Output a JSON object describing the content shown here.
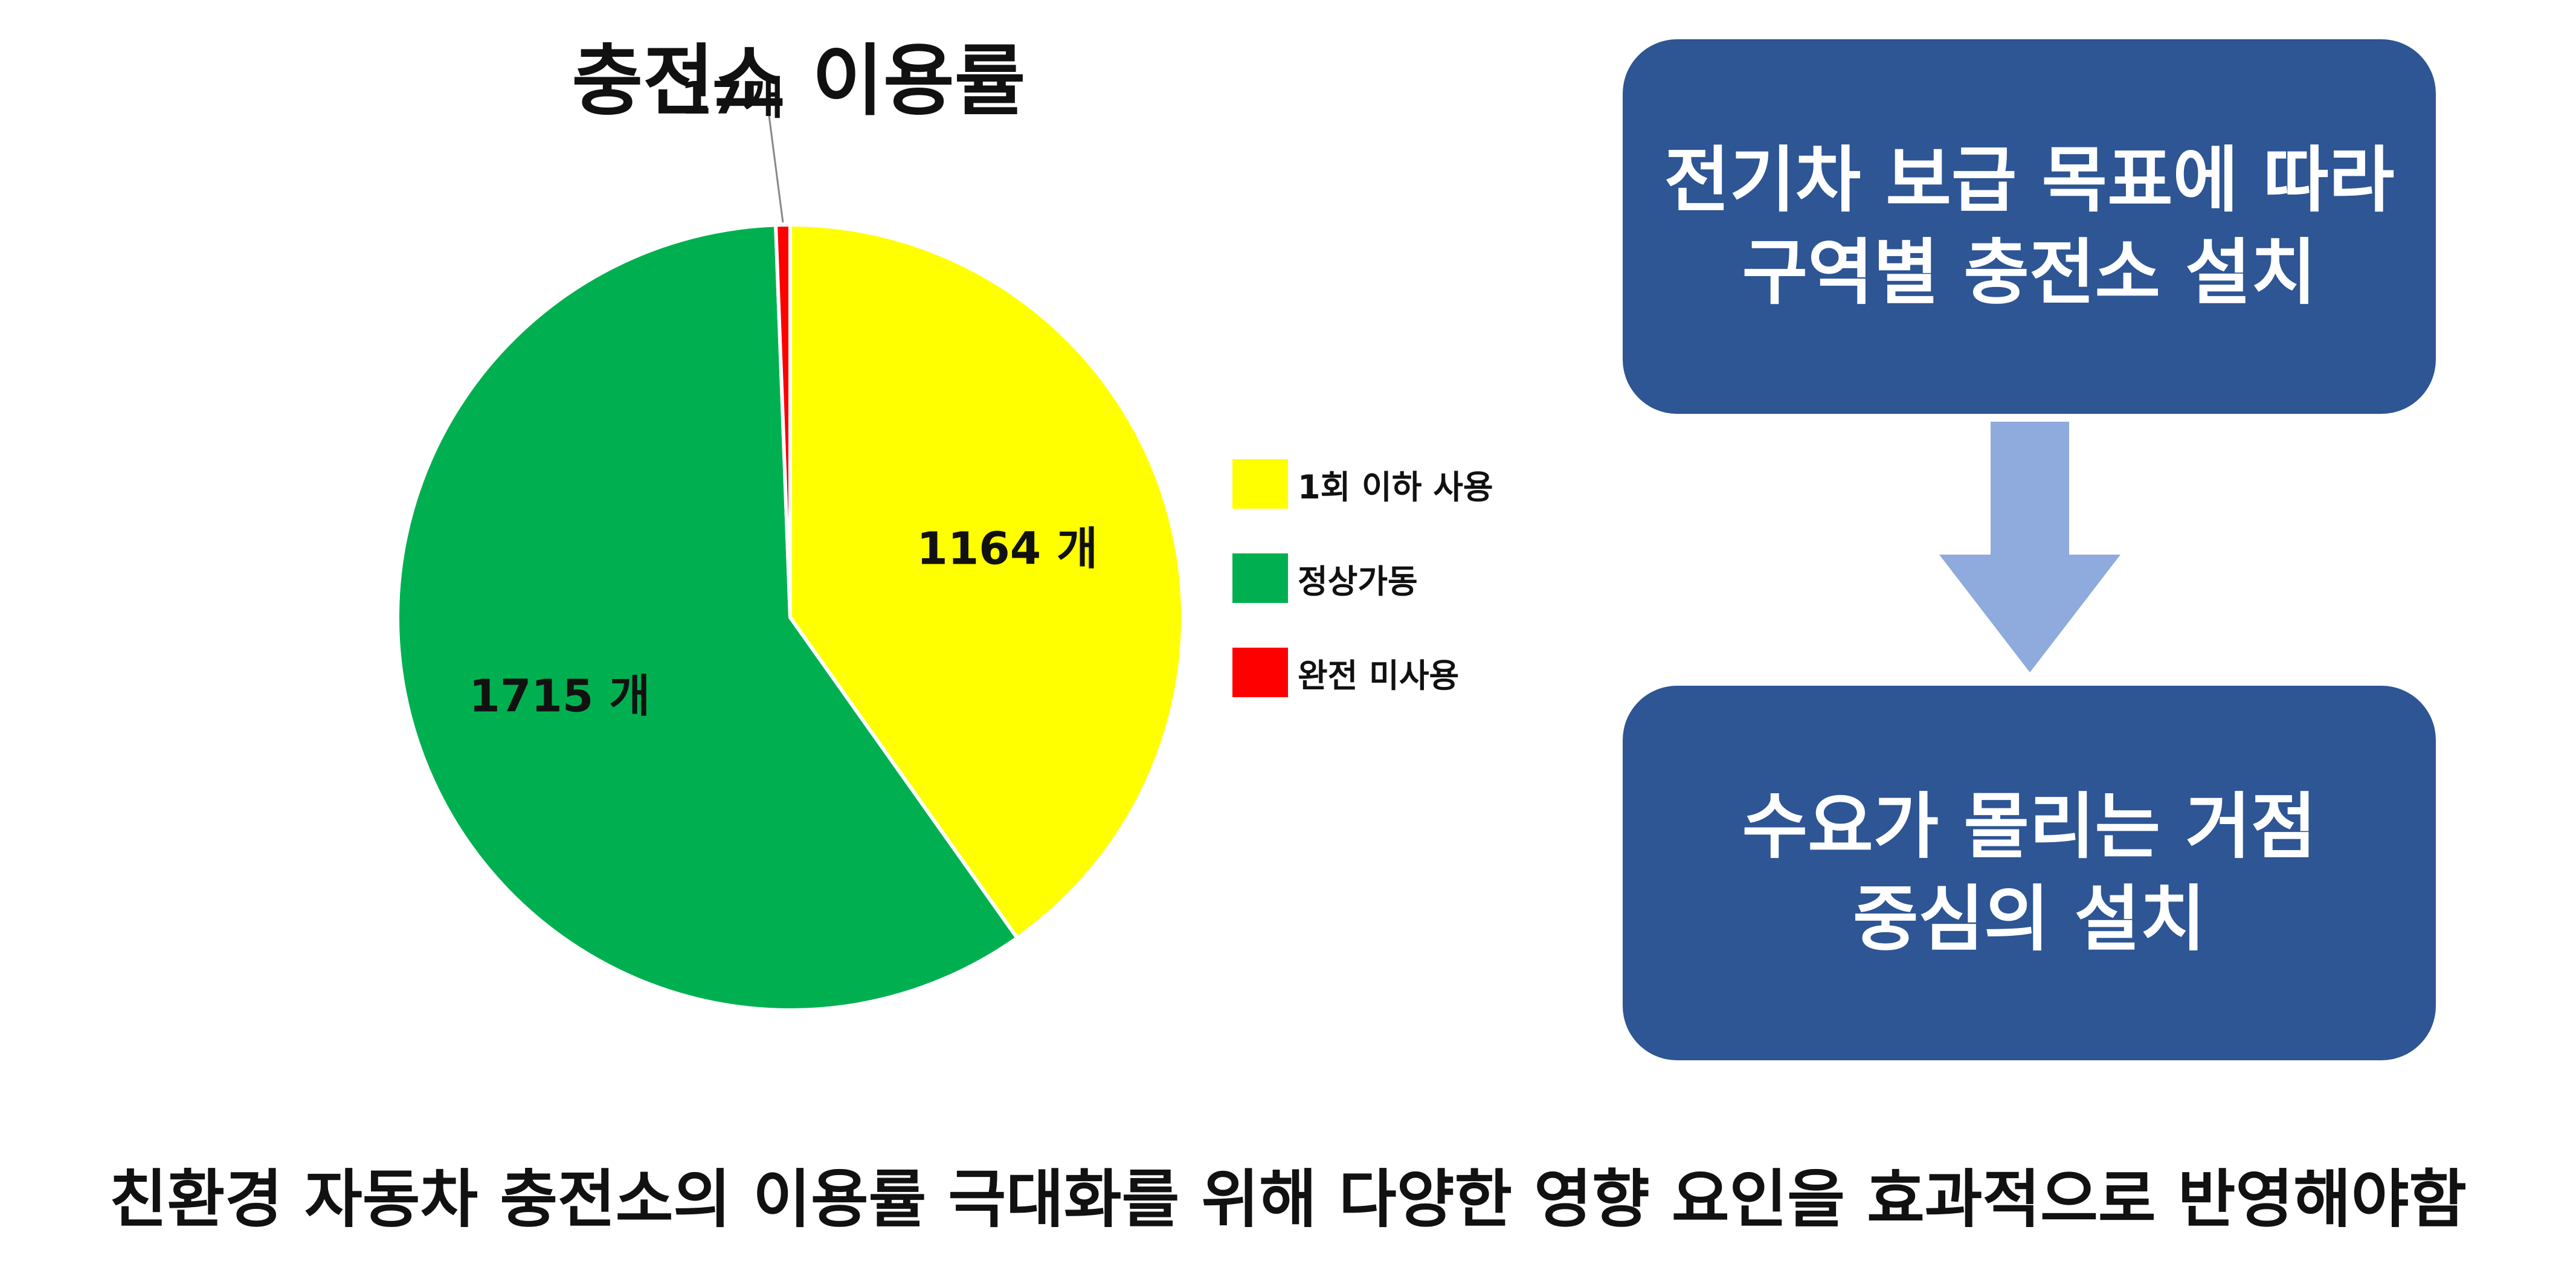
{
  "colors": {
    "low_use": "#ffff00",
    "normal": "#00b050",
    "unused": "#ff0000",
    "box_bg": "#2e5594",
    "arrow": "#8faadc",
    "text_white": "#ffffff"
  },
  "chart_data": {
    "type": "pie",
    "title": "충전소 이용률",
    "categories": [
      "1회 이하 사용",
      "정상가동",
      "완전 미사용"
    ],
    "values": [
      1164,
      1715,
      17
    ],
    "data_labels": [
      "1164 개",
      "1715 개",
      "17개"
    ],
    "legend_position": "right"
  },
  "flow": {
    "box1_line1": "전기차 보급 목표에 따라",
    "box1_line2": "구역별 충전소 설치",
    "box2_line1": "수요가 몰리는 거점",
    "box2_line2": "중심의 설치"
  },
  "footer": "친환경 자동차 충전소의 이용률 극대화를 위해 다양한 영향 요인을 효과적으로 반영해야함"
}
